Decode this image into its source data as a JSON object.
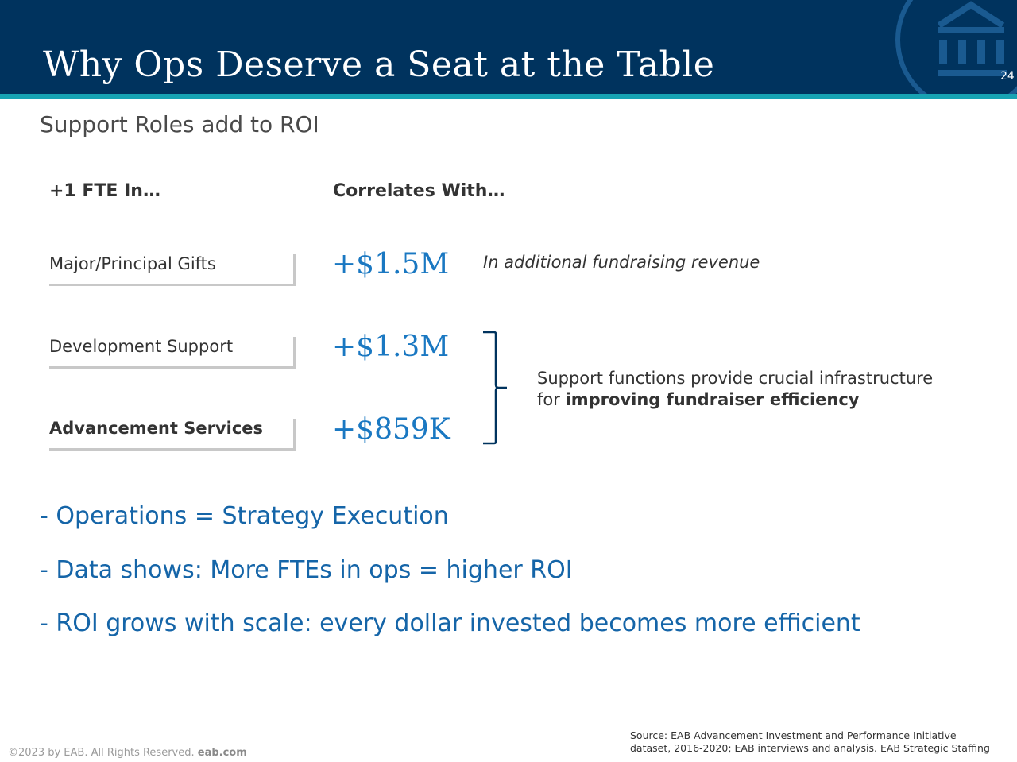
{
  "header": {
    "title": "Why Ops Deserve a Seat at the Table",
    "page_number": "24"
  },
  "subtitle": "Support Roles add to ROI",
  "table": {
    "col1_header": "+1 FTE In…",
    "col2_header": "Correlates With…",
    "rows": [
      {
        "role": "Major/Principal Gifts",
        "value": "+$1.5M",
        "note": "In additional fundraising revenue"
      },
      {
        "role": "Development Support",
        "value": "+$1.3M"
      },
      {
        "role": "Advancement Services",
        "value": "+$859K"
      }
    ],
    "support_note": {
      "line1": "Support functions provide crucial infrastructure",
      "line2_prefix": "for ",
      "line2_bold": "improving fundraiser efficiency"
    }
  },
  "bullets": [
    "- Operations = Strategy Execution",
    "- Data shows: More FTEs in ops = higher ROI",
    "- ROI grows with scale: every dollar invested becomes more efficient"
  ],
  "footer": {
    "copyright": "©2023 by EAB. All Rights Reserved.",
    "website": "eab.com",
    "source_line1": "Source: EAB Advancement Investment and Performance Initiative",
    "source_line2": "dataset, 2016-2020; EAB interviews and analysis.  EAB Strategic Staffing"
  },
  "colors": {
    "header_bg": "#00335e",
    "accent_stripe": "#17a3b3",
    "value_blue": "#1a78c2",
    "bullet_blue": "#1565a8"
  },
  "icons": {
    "logo": "eab-building-logo-icon",
    "brace": "right-brace-icon"
  }
}
